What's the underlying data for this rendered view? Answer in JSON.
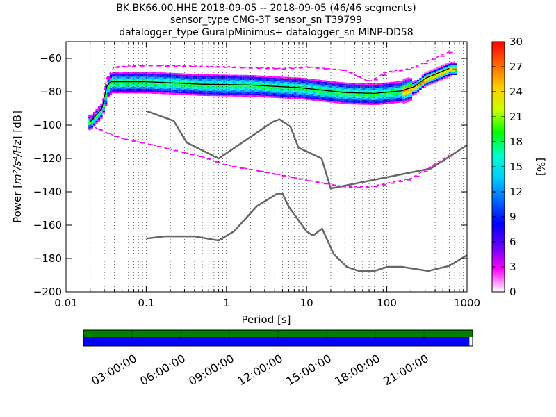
{
  "chart_data": [
    {
      "type": "heatmap",
      "title_lines": [
        "BK.BK66.00.HHE   2018-09-05 -- 2018-09-05  (46/46 segments)",
        "sensor_type CMG-3T sensor_sn T39799",
        "datalogger_type GuralpMinimus+ datalogger_sn MINP-DD58"
      ],
      "xlabel": "Period [s]",
      "ylabel_prefix": "Power [",
      "ylabel_math": "m²/s⁴/Hz",
      "ylabel_suffix": "] [dB]",
      "x_scale": "log",
      "xlim": [
        0.01,
        1000
      ],
      "ylim": [
        -200,
        -50
      ],
      "x_ticks": [
        {
          "value": 0.01,
          "label": "0.01"
        },
        {
          "value": 0.1,
          "label": "0.1"
        },
        {
          "value": 1,
          "label": "1"
        },
        {
          "value": 10,
          "label": "10"
        },
        {
          "value": 100,
          "label": "100"
        },
        {
          "value": 1000,
          "label": "1000"
        }
      ],
      "y_ticks": [
        {
          "value": -60,
          "label": "−60"
        },
        {
          "value": -80,
          "label": "−80"
        },
        {
          "value": -100,
          "label": "−100"
        },
        {
          "value": -120,
          "label": "−120"
        },
        {
          "value": -140,
          "label": "−140"
        },
        {
          "value": -160,
          "label": "−160"
        },
        {
          "value": -180,
          "label": "−180"
        },
        {
          "value": -200,
          "label": "−200"
        }
      ],
      "grid": "dotted",
      "colorbar": {
        "label": "[%]",
        "range": [
          0,
          30
        ],
        "ticks": [
          {
            "value": 0,
            "label": "0"
          },
          {
            "value": 3,
            "label": "3"
          },
          {
            "value": 6,
            "label": "6"
          },
          {
            "value": 9,
            "label": "9"
          },
          {
            "value": 12,
            "label": "12"
          },
          {
            "value": 15,
            "label": "15"
          },
          {
            "value": 18,
            "label": "18"
          },
          {
            "value": 21,
            "label": "21"
          },
          {
            "value": 24,
            "label": "24"
          },
          {
            "value": 27,
            "label": "27"
          },
          {
            "value": 30,
            "label": "30"
          }
        ],
        "colors": [
          "#ffffff",
          "#ff00ff",
          "#6600ff",
          "#0000ff",
          "#0066ff",
          "#00ccff",
          "#00ffcc",
          "#00ff00",
          "#ccff00",
          "#ffcc00",
          "#ff6600",
          "#ff0000"
        ]
      },
      "series": [
        {
          "role": "new_high_noise_model",
          "color": "#666666",
          "points": [
            [
              0.1,
              -91.5
            ],
            [
              0.22,
              -97.4
            ],
            [
              0.32,
              -110.5
            ],
            [
              0.8,
              -120
            ],
            [
              3.8,
              -98
            ],
            [
              4.6,
              -96.5
            ],
            [
              6.3,
              -101
            ],
            [
              7.9,
              -113.5
            ],
            [
              15.4,
              -120
            ],
            [
              20,
              -138
            ],
            [
              354,
              -126
            ],
            [
              1000,
              -112
            ]
          ]
        },
        {
          "role": "new_low_noise_model",
          "color": "#666666",
          "points": [
            [
              0.1,
              -168
            ],
            [
              0.17,
              -166.7
            ],
            [
              0.4,
              -166.7
            ],
            [
              0.8,
              -169.2
            ],
            [
              1.24,
              -163.7
            ],
            [
              2.4,
              -148.6
            ],
            [
              4.3,
              -141.1
            ],
            [
              5,
              -141.1
            ],
            [
              6,
              -149
            ],
            [
              10,
              -163.8
            ],
            [
              12,
              -166.2
            ],
            [
              15.6,
              -162.1
            ],
            [
              21.9,
              -177.5
            ],
            [
              31.6,
              -185
            ],
            [
              45,
              -187.5
            ],
            [
              70,
              -187.5
            ],
            [
              101,
              -185
            ],
            [
              154,
              -185
            ],
            [
              328,
              -187.5
            ],
            [
              600,
              -184.4
            ],
            [
              1000,
              -178
            ]
          ]
        },
        {
          "role": "mode",
          "color": "#000000",
          "points": [
            [
              0.02,
              -98
            ],
            [
              0.028,
              -90
            ],
            [
              0.032,
              -77
            ],
            [
              0.036,
              -74
            ],
            [
              0.1,
              -74
            ],
            [
              0.5,
              -75.5
            ],
            [
              2,
              -76
            ],
            [
              8,
              -77.5
            ],
            [
              30,
              -80.5
            ],
            [
              70,
              -81
            ],
            [
              150,
              -79.5
            ],
            [
              220,
              -77
            ],
            [
              300,
              -72
            ],
            [
              600,
              -66
            ]
          ]
        },
        {
          "role": "percentile_low",
          "color": "#ff00ff",
          "points": [
            [
              0.02,
              -100
            ],
            [
              0.03,
              -104
            ],
            [
              0.05,
              -108
            ],
            [
              0.1,
              -111
            ],
            [
              0.5,
              -119
            ],
            [
              1,
              -124
            ],
            [
              3,
              -128
            ],
            [
              10,
              -133
            ],
            [
              30,
              -137
            ],
            [
              60,
              -137
            ],
            [
              200,
              -132
            ],
            [
              600,
              -118
            ]
          ]
        },
        {
          "role": "percentile_high",
          "color": "#ff00ff",
          "points": [
            [
              0.02,
              -96
            ],
            [
              0.028,
              -88
            ],
            [
              0.032,
              -72
            ],
            [
              0.04,
              -65
            ],
            [
              0.1,
              -64
            ],
            [
              1,
              -65
            ],
            [
              5,
              -66
            ],
            [
              10,
              -65
            ],
            [
              30,
              -67
            ],
            [
              60,
              -74
            ],
            [
              100,
              -68
            ],
            [
              200,
              -66
            ],
            [
              600,
              -56
            ]
          ]
        }
      ]
    },
    {
      "type": "timeline",
      "x_ticks": [
        "03:00:00",
        "06:00:00",
        "09:00:00",
        "12:00:00",
        "15:00:00",
        "18:00:00",
        "21:00:00"
      ],
      "tick_hours": [
        3,
        6,
        9,
        12,
        15,
        18,
        21
      ],
      "range_hours": [
        0,
        24
      ],
      "rows": [
        {
          "role": "data_available",
          "color": "#007f00",
          "start_hours": 0,
          "end_hours": 24
        },
        {
          "role": "psd_computed",
          "color": "#0000ff",
          "start_hours": 0,
          "end_hours": 23.8
        }
      ]
    }
  ]
}
